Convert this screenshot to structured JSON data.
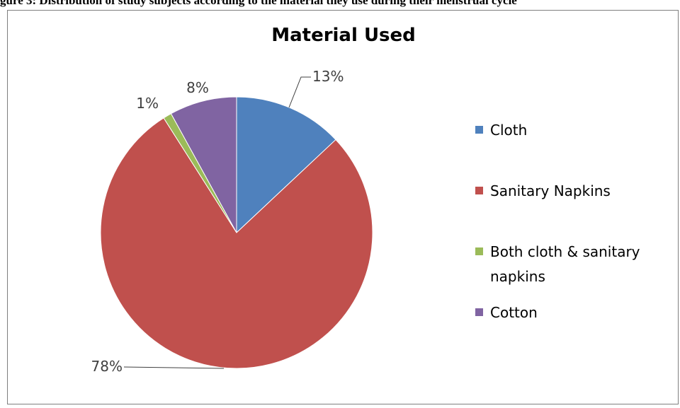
{
  "page": {
    "caption": "gure 3: Distribution of study subjects according to the material they use during their menstrual cycle"
  },
  "chart_data": {
    "type": "pie",
    "title": "Material Used",
    "categories": [
      "Cloth",
      "Sanitary Napkins",
      "Both cloth & sanitary napkins",
      "Cotton"
    ],
    "values": [
      13,
      78,
      1,
      8
    ],
    "data_labels": [
      "13%",
      "78%",
      "1%",
      "8%"
    ],
    "colors": [
      "#4f81bd",
      "#c0504d",
      "#9bbb59",
      "#8064a2"
    ],
    "legend_lines": [
      [
        "Cloth"
      ],
      [
        "Sanitary Napkins"
      ],
      [
        "Both cloth & sanitary",
        "napkins"
      ],
      [
        "Cotton"
      ]
    ],
    "legend_position": "right",
    "start_angle": "12 o'clock",
    "direction": "clockwise"
  }
}
